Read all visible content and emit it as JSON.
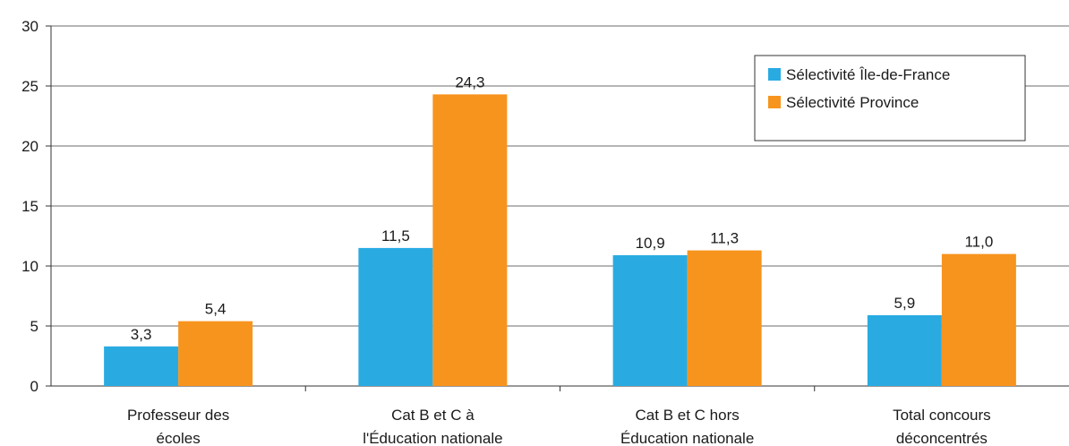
{
  "chart_data": {
    "type": "bar",
    "categories": [
      [
        "Professeur des",
        "écoles"
      ],
      [
        "Cat B et C à",
        "l'Éducation nationale"
      ],
      [
        "Cat B et C hors",
        "Éducation nationale"
      ],
      [
        "Total concours",
        "déconcentrés"
      ]
    ],
    "series": [
      {
        "name": "Sélectivité Île-de-France",
        "color": "#29abe2",
        "values": [
          3.3,
          11.5,
          10.9,
          5.9
        ],
        "labels": [
          "3,3",
          "11,5",
          "10,9",
          "5,9"
        ]
      },
      {
        "name": "Sélectivité Province",
        "color": "#f7941d",
        "values": [
          5.4,
          24.3,
          11.3,
          11.0
        ],
        "labels": [
          "5,4",
          "24,3",
          "11,3",
          "11,0"
        ]
      }
    ],
    "ylim": [
      0,
      30
    ],
    "yticks": [
      0,
      5,
      10,
      15,
      20,
      25,
      30
    ],
    "grid": true,
    "legend_position": "top-right",
    "title": "",
    "xlabel": "",
    "ylabel": ""
  }
}
